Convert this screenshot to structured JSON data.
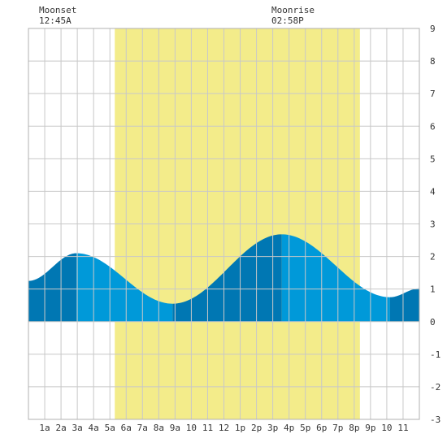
{
  "colors": {
    "daylight": "#f3ec8a",
    "tide_rising": "#0077b3",
    "tide_falling": "#0099d9",
    "grid": "#c8c8c8",
    "text": "#333333"
  },
  "annotations": {
    "moonset": {
      "label": "Moonset",
      "time": "12:45A",
      "hour": 0.75
    },
    "moonrise": {
      "label": "Moonrise",
      "time": "02:58P",
      "hour": 14.97
    }
  },
  "chart_data": {
    "type": "area",
    "title": "",
    "xlabel": "",
    "ylabel": "",
    "xlim": [
      0,
      24
    ],
    "ylim": [
      -3,
      9
    ],
    "grid": true,
    "x_ticks": [
      {
        "hour": 1,
        "label": "1a"
      },
      {
        "hour": 2,
        "label": "2a"
      },
      {
        "hour": 3,
        "label": "3a"
      },
      {
        "hour": 4,
        "label": "4a"
      },
      {
        "hour": 5,
        "label": "5a"
      },
      {
        "hour": 6,
        "label": "6a"
      },
      {
        "hour": 7,
        "label": "7a"
      },
      {
        "hour": 8,
        "label": "8a"
      },
      {
        "hour": 9,
        "label": "9a"
      },
      {
        "hour": 10,
        "label": "10"
      },
      {
        "hour": 11,
        "label": "11"
      },
      {
        "hour": 12,
        "label": "12"
      },
      {
        "hour": 13,
        "label": "1p"
      },
      {
        "hour": 14,
        "label": "2p"
      },
      {
        "hour": 15,
        "label": "3p"
      },
      {
        "hour": 16,
        "label": "4p"
      },
      {
        "hour": 17,
        "label": "5p"
      },
      {
        "hour": 18,
        "label": "6p"
      },
      {
        "hour": 19,
        "label": "7p"
      },
      {
        "hour": 20,
        "label": "8p"
      },
      {
        "hour": 21,
        "label": "9p"
      },
      {
        "hour": 22,
        "label": "10"
      },
      {
        "hour": 23,
        "label": "11"
      }
    ],
    "y_ticks": [
      -3,
      -2,
      -1,
      0,
      1,
      2,
      3,
      4,
      5,
      6,
      7,
      8,
      9
    ],
    "daylight": {
      "start_hour": 5.3,
      "end_hour": 20.35
    },
    "tide_extremes": [
      {
        "hour": 0.0,
        "height": 1.25
      },
      {
        "hour": 2.95,
        "height": 2.1,
        "type": "high"
      },
      {
        "hour": 8.85,
        "height": 0.55,
        "type": "low"
      },
      {
        "hour": 15.55,
        "height": 2.68,
        "type": "high"
      },
      {
        "hour": 22.2,
        "height": 0.75,
        "type": "low"
      },
      {
        "hour": 24.0,
        "height": 1.02
      }
    ]
  }
}
